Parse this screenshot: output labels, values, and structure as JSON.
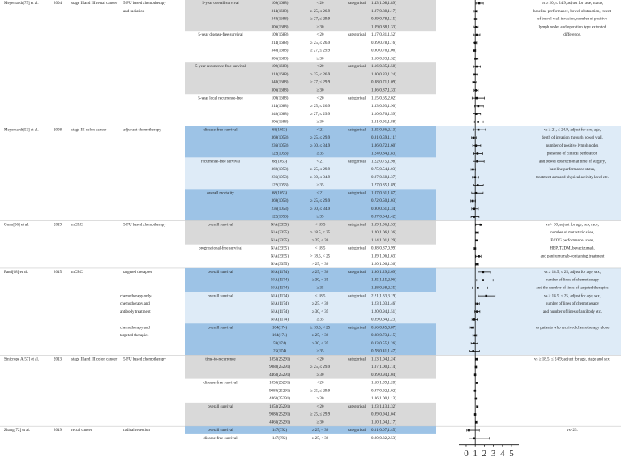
{
  "forest": {
    "xlim": [
      -0.8,
      5.8
    ],
    "xticks": [
      0,
      1,
      2,
      3,
      4,
      5
    ],
    "reference": 1
  },
  "studies": [
    {
      "name": "Meyerhardt[75] et al.",
      "year": "2004",
      "population": "stage II and III rectal cancer",
      "treatment": [
        "5-FU based chemotherapy",
        "and radiation"
      ],
      "notes": [
        "vs ≥ 20, ≤ 24.9, adjust for race, status,",
        "baseline performance, bowel obstruction, extent",
        "of bowel wall invasion, number of positive",
        "lymph nodes and operation type extent of",
        "difference."
      ],
      "groups": [
        {
          "outcome": "5-year overall survival",
          "color": "#d9d9d9",
          "rows": [
            {
              "n": "109(1688)",
              "bmi": "< 20",
              "type": "categorical",
              "hr_label": "1.43(1.08,1.89)",
              "hr": [
                1.43,
                1.08,
                1.89
              ]
            },
            {
              "n": "314(1688)",
              "bmi": "≥ 25, ≤ 26.9",
              "hr_label": "1.07(0.88,1.17)",
              "hr": [
                1.07,
                0.88,
                1.17
              ]
            },
            {
              "n": "348(1688)",
              "bmi": "≥ 27, ≤ 29.9",
              "hr_label": "0.99(0.78,1.15)",
              "hr": [
                0.99,
                0.78,
                1.15
              ]
            },
            {
              "n": "306(1688)",
              "bmi": "≥ 30",
              "hr_label": "1.09(0.88,1.33)",
              "hr": [
                1.09,
                0.88,
                1.33
              ]
            }
          ]
        },
        {
          "outcome": "5-year disease-free survival",
          "rows": [
            {
              "n": "109(1688)",
              "bmi": "< 20",
              "type": "categorical",
              "hr_label": "1.17(0.81,1.52)",
              "hr": [
                1.17,
                0.81,
                1.52
              ]
            },
            {
              "n": "314(1688)",
              "bmi": "≥ 25, ≤ 26.9",
              "hr_label": "0.99(0.78,1.16)",
              "hr": [
                0.99,
                0.78,
                1.16
              ]
            },
            {
              "n": "348(1688)",
              "bmi": "≥ 27, ≤ 29.9",
              "hr_label": "0.90(0.76,1.06)",
              "hr": [
                0.9,
                0.76,
                1.06
              ]
            },
            {
              "n": "306(1688)",
              "bmi": "≥ 30",
              "hr_label": "1.10(0.93,1.32)",
              "hr": [
                1.1,
                0.93,
                1.32
              ]
            }
          ]
        },
        {
          "outcome": "5-year recurrence-free survival",
          "color": "#d9d9d9",
          "rows": [
            {
              "n": "109(1688)",
              "bmi": "< 20",
              "type": "categorical",
              "hr_label": "1.16(0.85,1.58)",
              "hr": [
                1.16,
                0.85,
                1.58
              ]
            },
            {
              "n": "314(1688)",
              "bmi": "≥ 25, ≤ 26.9",
              "hr_label": "1.00(0.83,1.24)",
              "hr": [
                1.0,
                0.83,
                1.24
              ]
            },
            {
              "n": "348(1688)",
              "bmi": "≥ 27, ≤ 29.9",
              "hr_label": "0.88(0.71,1.09)",
              "hr": [
                0.88,
                0.71,
                1.09
              ]
            },
            {
              "n": "306(1688)",
              "bmi": "≥ 30",
              "hr_label": "1.06(0.87,1.33)",
              "hr": [
                1.06,
                0.87,
                1.33
              ]
            }
          ]
        },
        {
          "outcome": "5-year local recurrence-free",
          "rows": [
            {
              "n": "109(1688)",
              "bmi": "< 20",
              "type": "categorical",
              "hr_label": "1.15(0.65,2.02)",
              "hr": [
                1.15,
                0.65,
                2.02
              ]
            },
            {
              "n": "314(1688)",
              "bmi": "≥ 25, ≤ 26.9",
              "hr_label": "1.33(0.93,1.90)",
              "hr": [
                1.33,
                0.93,
                1.9
              ]
            },
            {
              "n": "348(1688)",
              "bmi": "≥ 27, ≤ 29.9",
              "hr_label": "1.10(0.76,1.59)",
              "hr": [
                1.1,
                0.76,
                1.59
              ]
            },
            {
              "n": "306(1688)",
              "bmi": "≥ 30",
              "hr_label": "1.31(0.91,1.88)",
              "hr": [
                1.31,
                0.91,
                1.88
              ]
            }
          ]
        }
      ]
    },
    {
      "name": "Meyerhardt[53] et al.",
      "year": "2008",
      "population": "stage III colon cancer",
      "treatment": [
        "adjuvant chemotherapy"
      ],
      "color": "#deebf7",
      "notes": [
        "vs ≥ 21, ≤ 24.9, adjust for sex, age,",
        "depth of invasion through bowel wall,",
        "number of positive lymph nodes",
        "presence of clinical perforation",
        "and bowel obstruction at time of surgery,",
        "baseline performance status,",
        "treatment arm and physical activity level etc."
      ],
      "groups": [
        {
          "outcome": "disease-free survival",
          "color": "#9dc3e6",
          "rows": [
            {
              "n": "68(1053)",
              "bmi": "< 21",
              "type": "categorical",
              "hr_label": "1.35(0.86,2.13)",
              "hr": [
                1.35,
                0.86,
                2.13
              ]
            },
            {
              "n": "369(1053)",
              "bmi": "≥ 25, ≤ 29.9",
              "hr_label": "0.81(0.59,1.11)",
              "hr": [
                0.81,
                0.59,
                1.11
              ]
            },
            {
              "n": "236(1053)",
              "bmi": "≥ 30, ≤ 34.9",
              "hr_label": "1.06(0.72,1.60)",
              "hr": [
                1.06,
                0.72,
                1.6
              ]
            },
            {
              "n": "122(1053)",
              "bmi": "≥ 35",
              "hr_label": "1.24(0.84,1.83)",
              "hr": [
                1.24,
                0.84,
                1.83
              ]
            }
          ]
        },
        {
          "outcome": "recurrence-free survival",
          "rows": [
            {
              "n": "68(1053)",
              "bmi": "< 21",
              "type": "categorical",
              "hr_label": "1.22(0.75,1.98)",
              "hr": [
                1.22,
                0.75,
                1.98
              ]
            },
            {
              "n": "369(1053)",
              "bmi": "≥ 25, ≤ 29.9",
              "hr_label": "0.75(0.54,1.03)",
              "hr": [
                0.75,
                0.54,
                1.03
              ]
            },
            {
              "n": "236(1053)",
              "bmi": "≥ 30, ≤ 34.9",
              "hr_label": "0.97(0.68,1.37)",
              "hr": [
                0.97,
                0.68,
                1.37
              ]
            },
            {
              "n": "122(1053)",
              "bmi": "≥ 35",
              "hr_label": "1.27(0.85,1.89)",
              "hr": [
                1.27,
                0.85,
                1.89
              ]
            }
          ]
        },
        {
          "outcome": "overall mortality",
          "color": "#9dc3e6",
          "rows": [
            {
              "n": "68(1053)",
              "bmi": "< 21",
              "type": "categorical",
              "hr_label": "1.07(0.61,1.87)",
              "hr": [
                1.07,
                0.61,
                1.87
              ]
            },
            {
              "n": "369(1053)",
              "bmi": "≥ 25, ≤ 29.9",
              "hr_label": "0.72(0.50,1.03)",
              "hr": [
                0.72,
                0.5,
                1.03
              ]
            },
            {
              "n": "236(1053)",
              "bmi": "≥ 30, ≤ 34.9",
              "hr_label": "0.90(0.61,1.34)",
              "hr": [
                0.9,
                0.61,
                1.34
              ]
            },
            {
              "n": "122(1053)",
              "bmi": "≥ 35",
              "hr_label": "0.87(0.54,1.42)",
              "hr": [
                0.87,
                0.54,
                1.42
              ]
            }
          ]
        }
      ]
    },
    {
      "name": "Omar[56] et al.",
      "year": "2019",
      "population": "mCRC",
      "treatment": [
        "5-FU based chemotherapy"
      ],
      "notes": [
        "vs > 30, adjust for age, sex, race,",
        "number of metastatic sites,",
        "ECOG performance score,",
        "HBP, T2DM, bevacizumab,",
        "and panitumumab-containing treatment"
      ],
      "groups": [
        {
          "outcome": "overall survival",
          "color": "#d9d9d9",
          "rows": [
            {
              "n": "N/A(3355)",
              "bmi": "< 18.5",
              "type": "categorical",
              "hr_label": "1.59(1.06,1.53)",
              "hr": [
                1.59,
                1.06,
                1.53
              ]
            },
            {
              "n": "N/A(3355)",
              "bmi": "> 18.5, < 25",
              "hr_label": "1.20(1.06,1.36)",
              "hr": [
                1.2,
                1.06,
                1.36
              ]
            },
            {
              "n": "N/A(3355)",
              "bmi": "> 25, < 30",
              "hr_label": "1.14(1.01,1.29)",
              "hr": [
                1.14,
                1.01,
                1.29
              ]
            }
          ]
        },
        {
          "outcome": "progressional-free survival",
          "rows": [
            {
              "n": "N/A(3355)",
              "bmi": "< 18.5",
              "type": "categorical",
              "hr_label": "0.98(0.87,0.99)",
              "hr": [
                0.98,
                0.87,
                0.99
              ]
            },
            {
              "n": "N/A(3355)",
              "bmi": "> 18.5, < 25",
              "hr_label": "1.39(1.06,1.63)",
              "hr": [
                1.39,
                1.06,
                1.63
              ]
            },
            {
              "n": "N/A(3355)",
              "bmi": "> 25, < 30",
              "hr_label": "1.20(1.06,1.36)",
              "hr": [
                1.2,
                1.06,
                1.36
              ]
            }
          ]
        }
      ]
    },
    {
      "name": "Patel[68] et al.",
      "year": "2015",
      "population": "mCRC",
      "treatment": [
        "targeted therapies"
      ],
      "color": "#deebf7",
      "groups": [
        {
          "outcome": "overall survival",
          "color": "#9dc3e6",
          "notes": [
            "vs ≥ 18.5, ≤ 25, adjust for age, sex,",
            "number of lines of chemotherapy",
            "and the number of lines of targeted therapies"
          ],
          "rows": [
            {
              "n": "N/A(1174)",
              "bmi": "≥ 25, < 30",
              "type": "categorical",
              "hr_label": "1.86(1.29,2.69)",
              "hr": [
                1.86,
                1.29,
                2.69
              ]
            },
            {
              "n": "N/A(1174)",
              "bmi": "≥ 30, < 35",
              "hr_label": "1.85(1.15,2.96)",
              "hr": [
                1.85,
                1.15,
                2.96
              ]
            },
            {
              "n": "N/A(1174)",
              "bmi": "≥ 35",
              "hr_label": "1.28(0.68,2.35)",
              "hr": [
                1.28,
                0.68,
                2.35
              ]
            }
          ]
        },
        {
          "subtreatment": [
            "chemotherapy only/",
            "chemotherapy and",
            "antibody treatment"
          ],
          "outcome": "overall survival",
          "notes": [
            "vs ≥ 18.5, ≤ 25, adjust for age, sex,",
            "number of lines of chemotherapy",
            "and number of lines of antibody etc."
          ],
          "rows": [
            {
              "n": "N/A(1174)",
              "bmi": "< 18.5",
              "type": "categorical",
              "hr_label": "2.21(1.33,3.19)",
              "hr": [
                2.21,
                1.33,
                3.19
              ]
            },
            {
              "n": "N/A(1174)",
              "bmi": "≥ 25, < 30",
              "hr_label": "1.23(1.03,1.46)",
              "hr": [
                1.23,
                1.03,
                1.46
              ]
            },
            {
              "n": "N/A(1174)",
              "bmi": "≥ 30, < 35",
              "hr_label": "1.20(0.94,1.51)",
              "hr": [
                1.2,
                0.94,
                1.51
              ]
            },
            {
              "n": "N/A(1174)",
              "bmi": "≥ 35",
              "hr_label": "0.89(0.64,1.23)",
              "hr": [
                0.89,
                0.64,
                1.23
              ]
            }
          ]
        },
        {
          "subtreatment": [
            "chemotherapy and",
            "targeted therapies"
          ],
          "outcome": "overall survival",
          "color": "#9dc3e6",
          "notes": [
            "vs patients who received chemotherapy alone"
          ],
          "rows": [
            {
              "n": "104(174)",
              "bmi": "≥ 18.5, < 25",
              "type": "categorical",
              "hr_label": "0.66(0.45,0.87)",
              "hr": [
                0.66,
                0.45,
                0.87
              ]
            },
            {
              "n": "164(174)",
              "bmi": "≥ 25, < 30",
              "hr_label": "0.98(0.73,1.15)",
              "hr": [
                0.98,
                0.73,
                1.15
              ]
            },
            {
              "n": "59(174)",
              "bmi": "≥ 30, < 35",
              "hr_label": "0.83(0.55,1.26)",
              "hr": [
                0.83,
                0.55,
                1.26
              ]
            },
            {
              "n": "25(174)",
              "bmi": "≥ 35",
              "hr_label": "0.78(0.41,1.47)",
              "hr": [
                0.78,
                0.41,
                1.47
              ]
            }
          ]
        }
      ]
    },
    {
      "name": "Sinicrope A[57] et al.",
      "year": "2013",
      "population": "stage II and III colon cancer",
      "treatment": [
        "5-FU based chemotherapy"
      ],
      "notes": [
        "vs ≥ 18.5, ≤ 24.9; adjust for age, stage and sex."
      ],
      "groups": [
        {
          "outcome": "time-to-recurrence",
          "color": "#d9d9d9",
          "rows": [
            {
              "n": "1853(25291)",
              "bmi": "< 20",
              "type": "categorical",
              "hr_label": "1.13(1.04,1.24)",
              "hr": [
                1.13,
                1.04,
                1.24
              ]
            },
            {
              "n": "9088(25291)",
              "bmi": "≥ 25, ≤ 29.9",
              "hr_label": "1.07(1.00,1.14)",
              "hr": [
                1.07,
                1.0,
                1.14
              ]
            },
            {
              "n": "4463(25291)",
              "bmi": "≥ 30",
              "hr_label": "0.99(0.94,1.04)",
              "hr": [
                0.99,
                0.94,
                1.04
              ]
            }
          ]
        },
        {
          "outcome": "disease-free survival",
          "rows": [
            {
              "n": "1853(25291)",
              "bmi": "< 20",
              "hr_label": "1.18(1.09,1.28)",
              "hr": [
                1.18,
                1.09,
                1.28
              ]
            },
            {
              "n": "9088(25291)",
              "bmi": "≥ 25, ≤ 29.9",
              "hr_label": "0.97(0.92,1.02)",
              "hr": [
                0.97,
                0.92,
                1.02
              ]
            },
            {
              "n": "4463(25291)",
              "bmi": "≥ 30",
              "hr_label": "1.06(1.00,1.13)",
              "hr": [
                1.06,
                1.0,
                1.13
              ]
            }
          ]
        },
        {
          "outcome": "overall survival",
          "color": "#d9d9d9",
          "rows": [
            {
              "n": "1853(25291)",
              "bmi": "< 20",
              "type": "categorical",
              "hr_label": "1.23(1.13,1.32)",
              "hr": [
                1.23,
                1.13,
                1.32
              ]
            },
            {
              "n": "9088(25291)",
              "bmi": "≥ 25, ≤ 29.9",
              "hr_label": "0.99(0.94,1.04)",
              "hr": [
                0.99,
                0.94,
                1.04
              ]
            },
            {
              "n": "4463(25291)",
              "bmi": "≥ 30",
              "hr_label": "1.10(1.04,1.17)",
              "hr": [
                1.1,
                1.04,
                1.17
              ]
            }
          ]
        }
      ]
    },
    {
      "name": "Zhang[72] et al.",
      "year": "2019",
      "population": "rectal cancer",
      "treatment": [
        "radical resection"
      ],
      "notes": [
        "vs<25."
      ],
      "groups": [
        {
          "outcome": "overall survival",
          "color": "#9dc3e6",
          "rows": [
            {
              "n": "147(792)",
              "bmi": "≥ 25, < 30",
              "type": "categorical",
              "hr_label": "0.31(0.07,1.45)",
              "hr": [
                0.31,
                0.07,
                1.45
              ]
            }
          ]
        },
        {
          "outcome": "disease-free survival",
          "rows": [
            {
              "n": "147(792)",
              "bmi": "≥ 25, < 30",
              "hr_label": "0.90(0.32,2.53)",
              "hr": [
                0.9,
                0.32,
                2.53
              ]
            }
          ]
        }
      ]
    }
  ]
}
